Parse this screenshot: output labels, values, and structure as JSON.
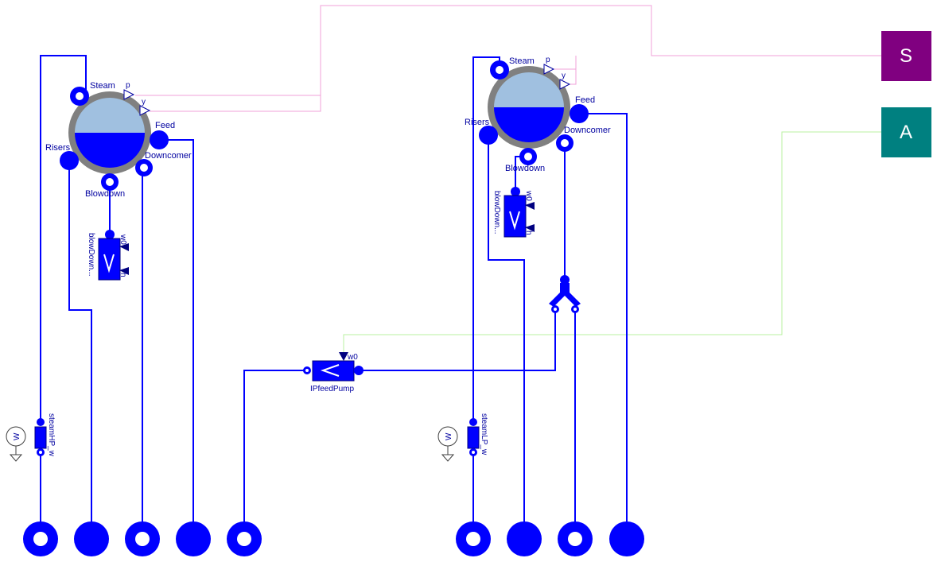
{
  "diagram": {
    "hp_drum": {
      "steam_label": "Steam",
      "feed_label": "Feed",
      "risers_label": "Risers",
      "downcomer_label": "Downcomer",
      "blowdown_label": "Blowdown",
      "p_label": "p",
      "y_label": "y"
    },
    "lp_drum": {
      "steam_label": "Steam",
      "feed_label": "Feed",
      "risers_label": "Risers",
      "downcomer_label": "Downcomer",
      "blowdown_label": "Blowdown",
      "p_label": "p",
      "y_label": "y"
    },
    "hp_blowdown_valve": {
      "label": "blowDown...",
      "w_label": "w0",
      "h_label": "h"
    },
    "lp_blowdown_valve": {
      "label": "blowDown...",
      "w_label": "w0",
      "h_label": "h"
    },
    "feed_pump": {
      "label": "IPfeedPump",
      "w_label": "w0"
    },
    "steam_hp": {
      "label": "steamHP_w",
      "sensor_glyph": "W"
    },
    "steam_lp": {
      "label": "steamLP_w",
      "sensor_glyph": "W"
    },
    "bus_S": {
      "label": "S",
      "color": "#800080"
    },
    "bus_A": {
      "label": "A",
      "color": "#008080"
    },
    "colors": {
      "wire": "#0000ff",
      "pink_signal": "#f0a0d8",
      "green_signal": "#b8f0a0"
    }
  }
}
